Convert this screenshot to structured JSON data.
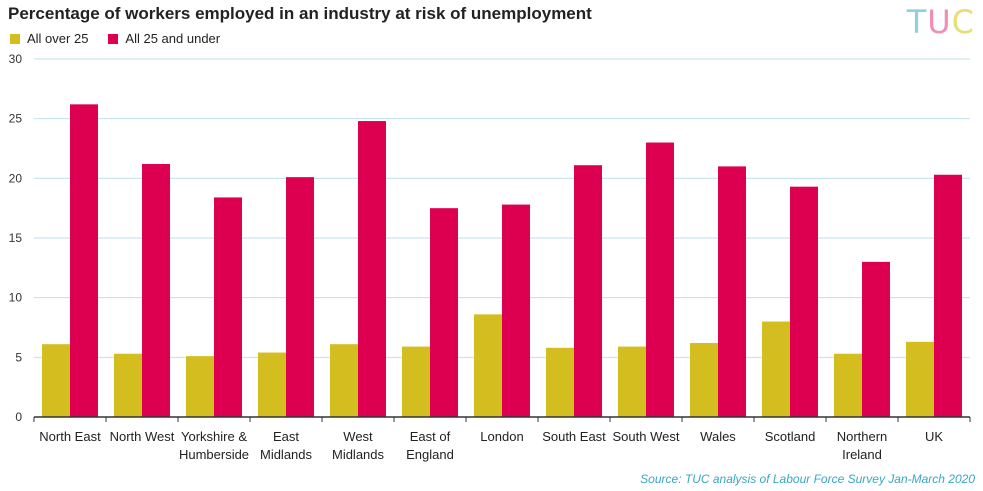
{
  "header": {
    "title": "Percentage of workers employed in an industry at risk of unemployment",
    "logo": {
      "letters": [
        "T",
        "U",
        "C"
      ],
      "colors": [
        "#8fd0df",
        "#f08fb4",
        "#e7dd7a"
      ]
    }
  },
  "footer": {
    "source": "Source: TUC analysis  of Labour Force Survey Jan-March 2020"
  },
  "colors": {
    "over25": "#d4bd1f",
    "under25": "#dd0050",
    "grid": "#bfe0ea",
    "axis": "#333333"
  },
  "chart_data": {
    "type": "bar",
    "title": "Percentage of workers employed in an industry at risk of unemployment",
    "xlabel": "",
    "ylabel": "",
    "ylim": [
      0,
      30
    ],
    "yticks": [
      0,
      5,
      10,
      15,
      20,
      25,
      30
    ],
    "grid": true,
    "legend_position": "top-left",
    "categories": [
      [
        "North East"
      ],
      [
        "North West"
      ],
      [
        "Yorkshire &",
        "Humberside"
      ],
      [
        "East",
        "Midlands"
      ],
      [
        "West",
        "Midlands"
      ],
      [
        "East of",
        "England"
      ],
      [
        "London"
      ],
      [
        "South East"
      ],
      [
        "South West"
      ],
      [
        "Wales"
      ],
      [
        "Scotland"
      ],
      [
        "Northern",
        "Ireland"
      ],
      [
        "UK"
      ]
    ],
    "series": [
      {
        "name": "All over 25",
        "color": "#d4bd1f",
        "values": [
          6.1,
          5.3,
          5.1,
          5.4,
          6.1,
          5.9,
          8.6,
          5.8,
          5.9,
          6.2,
          8.0,
          5.3,
          6.3
        ]
      },
      {
        "name": "All 25 and under",
        "color": "#dd0050",
        "values": [
          26.2,
          21.2,
          18.4,
          20.1,
          24.8,
          17.5,
          17.8,
          21.1,
          23.0,
          21.0,
          19.3,
          13.0,
          20.3
        ]
      }
    ]
  }
}
